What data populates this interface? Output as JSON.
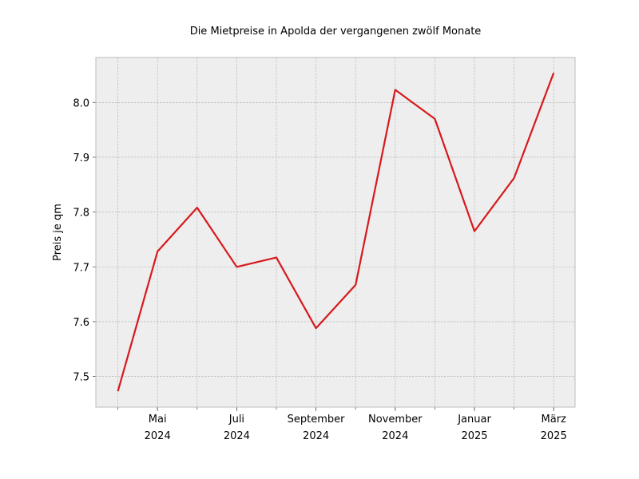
{
  "chart_data": {
    "type": "line",
    "title": "Die Mietpreise in Apolda der vergangenen zwölf Monate",
    "xlabel": "",
    "ylabel": "Preis je qm",
    "x": [
      "2024-04",
      "2024-05",
      "2024-06",
      "2024-07",
      "2024-08",
      "2024-09",
      "2024-10",
      "2024-11",
      "2024-12",
      "2025-01",
      "2025-02",
      "2025-03"
    ],
    "series": [
      {
        "values": [
          7.473,
          7.728,
          7.808,
          7.7,
          7.717,
          7.588,
          7.667,
          8.023,
          7.97,
          7.765,
          7.862,
          8.054
        ]
      }
    ],
    "xticks": [
      {
        "x": "2024-05",
        "line1": "Mai",
        "line2": "2024"
      },
      {
        "x": "2024-07",
        "line1": "Juli",
        "line2": "2024"
      },
      {
        "x": "2024-09",
        "line1": "September",
        "line2": "2024"
      },
      {
        "x": "2024-11",
        "line1": "November",
        "line2": "2024"
      },
      {
        "x": "2025-01",
        "line1": "Januar",
        "line2": "2025"
      },
      {
        "x": "2025-03",
        "line1": "März",
        "line2": "2025"
      }
    ],
    "yticks": [
      "7.5",
      "7.6",
      "7.7",
      "7.8",
      "7.9",
      "8.0"
    ],
    "ylim": [
      7.444,
      8.082
    ],
    "grid": true,
    "colors": {
      "line": "#d7191c",
      "plot_bg": "#eeeeee",
      "axes_edge": "#bcbcbc"
    }
  }
}
